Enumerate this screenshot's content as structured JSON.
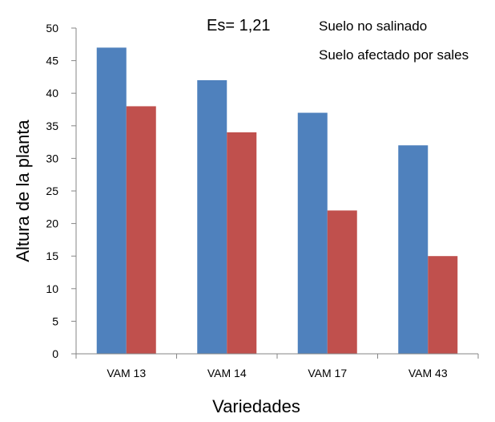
{
  "chart_data": {
    "type": "bar",
    "categories": [
      "VAM 13",
      "VAM 14",
      "VAM 17",
      "VAM 43"
    ],
    "series": [
      {
        "name": "Suelo no salinado",
        "values": [
          47,
          42,
          37,
          32
        ],
        "color": "#4f81bd"
      },
      {
        "name": "Suelo afectado por sales",
        "values": [
          38,
          34,
          22,
          15
        ],
        "color": "#c0504d"
      }
    ],
    "annotation": "Es= 1,21",
    "xlabel": "Variedades",
    "ylabel": "Altura de la planta",
    "ylim": [
      0,
      50
    ],
    "yticks": [
      0,
      5,
      10,
      15,
      20,
      25,
      30,
      35,
      40,
      45,
      50
    ],
    "grid": false,
    "legend_position": "top-right"
  }
}
